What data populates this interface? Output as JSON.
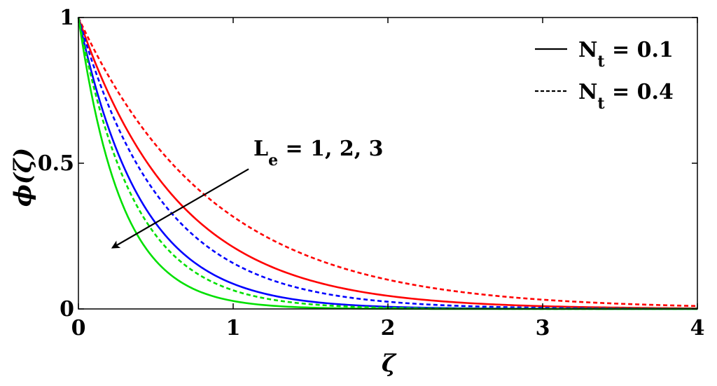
{
  "chart_data": {
    "type": "line",
    "xlabel": "ζ",
    "ylabel": "ϕ(ζ)",
    "xlim": [
      0,
      4
    ],
    "ylim": [
      0,
      1
    ],
    "x_ticks": [
      "0",
      "1",
      "2",
      "3",
      "4"
    ],
    "y_ticks": [
      "0",
      "0.5",
      "1"
    ],
    "grid": false,
    "legend": {
      "placement": "top-right",
      "entries": [
        {
          "main": "N",
          "sub": "t",
          "rest": " = 0.1",
          "style": "solid"
        },
        {
          "main": "N",
          "sub": "t",
          "rest": " = 0.4",
          "style": "dashed"
        }
      ]
    },
    "annotation": {
      "main": "L",
      "sub": "e",
      "rest": " = 1, 2, 3",
      "arrow_from": [
        1.1,
        0.48
      ],
      "arrow_to": [
        0.22,
        0.21
      ]
    },
    "series": [
      {
        "Le": 1,
        "Nt": 0.1,
        "color": "#ff0000",
        "style": "solid",
        "decay": 1.55
      },
      {
        "Le": 1,
        "Nt": 0.4,
        "color": "#ff0000",
        "style": "dashed",
        "decay": 1.15
      },
      {
        "Le": 2,
        "Nt": 0.1,
        "color": "#0000ff",
        "style": "solid",
        "decay": 2.45
      },
      {
        "Le": 2,
        "Nt": 0.4,
        "color": "#0000ff",
        "style": "dashed",
        "decay": 1.85
      },
      {
        "Le": 3,
        "Nt": 0.1,
        "color": "#00e000",
        "style": "solid",
        "decay": 3.6
      },
      {
        "Le": 3,
        "Nt": 0.4,
        "color": "#00e000",
        "style": "dashed",
        "decay": 2.75
      }
    ]
  }
}
